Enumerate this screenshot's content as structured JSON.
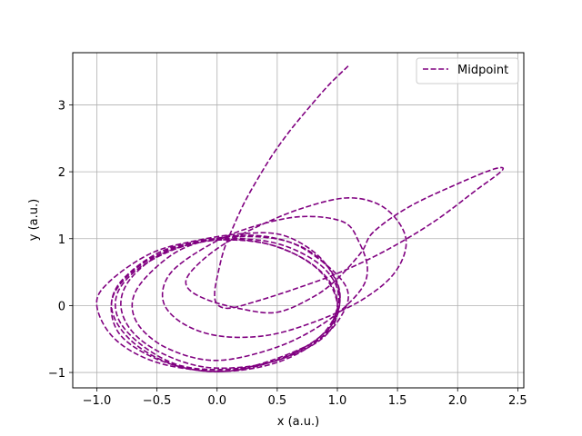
{
  "chart_data": {
    "type": "line",
    "title": "",
    "xlabel": "x (a.u.)",
    "ylabel": "y (a.u.)",
    "xlim": [
      -1.2,
      2.55
    ],
    "ylim": [
      -1.23,
      3.78
    ],
    "xticks": [
      -1.0,
      -0.5,
      0.0,
      0.5,
      1.0,
      1.5,
      2.0,
      2.5
    ],
    "yticks": [
      -1,
      0,
      1,
      2,
      3
    ],
    "xtick_labels": [
      "−1.0",
      "−0.5",
      "0.0",
      "0.5",
      "1.0",
      "1.5",
      "2.0",
      "2.5"
    ],
    "ytick_labels": [
      "−1",
      "0",
      "1",
      "2",
      "3"
    ],
    "grid": true,
    "legend_position": "top-right",
    "series": [
      {
        "name": "Midpoint",
        "color": "#800080",
        "line_style": "dashed",
        "points": [
          [
            1.09,
            3.58
          ],
          [
            0.93,
            3.3
          ],
          [
            0.76,
            2.95
          ],
          [
            0.6,
            2.6
          ],
          [
            0.46,
            2.25
          ],
          [
            0.34,
            1.9
          ],
          [
            0.23,
            1.55
          ],
          [
            0.14,
            1.2
          ],
          [
            0.06,
            0.85
          ],
          [
            0.01,
            0.5
          ],
          [
            -0.02,
            0.2
          ],
          [
            0.0,
            0.02
          ],
          [
            0.1,
            -0.04
          ],
          [
            0.3,
            0.05
          ],
          [
            0.6,
            0.22
          ],
          [
            1.0,
            0.48
          ],
          [
            1.4,
            0.82
          ],
          [
            1.8,
            1.25
          ],
          [
            2.15,
            1.72
          ],
          [
            2.37,
            2.02
          ],
          [
            2.3,
            2.04
          ],
          [
            2.0,
            1.82
          ],
          [
            1.6,
            1.48
          ],
          [
            1.3,
            1.1
          ],
          [
            1.2,
            0.8
          ],
          [
            1.0,
            0.4
          ],
          [
            0.8,
            0.13
          ],
          [
            0.5,
            -0.1
          ],
          [
            0.2,
            -0.05
          ],
          [
            -0.1,
            0.1
          ],
          [
            -0.25,
            0.28
          ],
          [
            -0.22,
            0.5
          ],
          [
            0.0,
            0.85
          ],
          [
            0.3,
            1.15
          ],
          [
            0.7,
            1.45
          ],
          [
            1.1,
            1.61
          ],
          [
            1.4,
            1.45
          ],
          [
            1.57,
            1.0
          ],
          [
            1.48,
            0.5
          ],
          [
            1.2,
            0.08
          ],
          [
            0.8,
            -0.25
          ],
          [
            0.4,
            -0.45
          ],
          [
            0.0,
            -0.45
          ],
          [
            -0.3,
            -0.25
          ],
          [
            -0.45,
            0.08
          ],
          [
            -0.38,
            0.5
          ],
          [
            -0.05,
            0.92
          ],
          [
            0.3,
            1.18
          ],
          [
            0.7,
            1.33
          ],
          [
            1.05,
            1.25
          ],
          [
            1.18,
            0.95
          ],
          [
            1.25,
            0.55
          ],
          [
            1.18,
            0.2
          ],
          [
            0.9,
            -0.25
          ],
          [
            0.5,
            -0.62
          ],
          [
            0.0,
            -0.82
          ],
          [
            -0.4,
            -0.65
          ],
          [
            -0.65,
            -0.3
          ],
          [
            -0.7,
            0.1
          ],
          [
            -0.55,
            0.5
          ],
          [
            -0.25,
            0.88
          ],
          [
            0.2,
            1.05
          ],
          [
            0.6,
            0.95
          ],
          [
            0.9,
            0.62
          ],
          [
            1.08,
            0.25
          ],
          [
            1.05,
            -0.1
          ],
          [
            0.85,
            -0.5
          ],
          [
            0.4,
            -0.85
          ],
          [
            0.0,
            -0.98
          ],
          [
            -0.5,
            -0.85
          ],
          [
            -0.85,
            -0.5
          ],
          [
            -1.0,
            0.0
          ],
          [
            -0.9,
            0.35
          ],
          [
            -0.55,
            0.78
          ],
          [
            -0.15,
            0.98
          ],
          [
            0.25,
            1.08
          ],
          [
            0.55,
            1.05
          ],
          [
            0.82,
            0.78
          ],
          [
            0.98,
            0.4
          ],
          [
            1.02,
            0.05
          ],
          [
            0.95,
            -0.3
          ],
          [
            0.7,
            -0.65
          ],
          [
            0.3,
            -0.92
          ],
          [
            -0.1,
            -0.98
          ],
          [
            -0.5,
            -0.8
          ],
          [
            -0.8,
            -0.45
          ],
          [
            -0.88,
            0.0
          ],
          [
            -0.78,
            0.4
          ],
          [
            -0.45,
            0.82
          ],
          [
            0.0,
            1.0
          ],
          [
            0.4,
            1.02
          ],
          [
            0.7,
            0.88
          ],
          [
            0.92,
            0.58
          ],
          [
            1.02,
            0.2
          ],
          [
            0.98,
            -0.2
          ],
          [
            0.82,
            -0.55
          ],
          [
            0.5,
            -0.85
          ],
          [
            0.1,
            -0.98
          ],
          [
            -0.3,
            -0.92
          ],
          [
            -0.65,
            -0.62
          ],
          [
            -0.85,
            -0.2
          ],
          [
            -0.85,
            0.2
          ],
          [
            -0.6,
            0.65
          ],
          [
            -0.2,
            0.95
          ],
          [
            0.2,
            1.0
          ],
          [
            0.55,
            0.9
          ],
          [
            0.85,
            0.62
          ],
          [
            1.0,
            0.25
          ],
          [
            0.98,
            -0.15
          ],
          [
            0.82,
            -0.52
          ],
          [
            0.5,
            -0.82
          ],
          [
            0.1,
            -0.95
          ],
          [
            -0.3,
            -0.9
          ],
          [
            -0.62,
            -0.6
          ],
          [
            -0.82,
            -0.2
          ],
          [
            -0.82,
            0.22
          ],
          [
            -0.6,
            0.62
          ],
          [
            -0.22,
            0.92
          ],
          [
            0.15,
            0.98
          ],
          [
            0.5,
            0.88
          ],
          [
            0.8,
            0.6
          ],
          [
            0.96,
            0.25
          ],
          [
            1.0,
            -0.12
          ],
          [
            0.9,
            -0.45
          ],
          [
            0.65,
            -0.72
          ],
          [
            0.3,
            -0.9
          ],
          [
            -0.1,
            -0.92
          ],
          [
            -0.45,
            -0.72
          ],
          [
            -0.7,
            -0.4
          ],
          [
            -0.8,
            0.0
          ],
          [
            -0.72,
            0.4
          ],
          [
            -0.45,
            0.78
          ],
          [
            -0.05,
            0.97
          ],
          [
            0.35,
            0.95
          ],
          [
            0.7,
            0.72
          ],
          [
            0.92,
            0.4
          ],
          [
            1.0,
            0.05
          ],
          [
            0.96,
            -0.25
          ]
        ]
      }
    ]
  }
}
